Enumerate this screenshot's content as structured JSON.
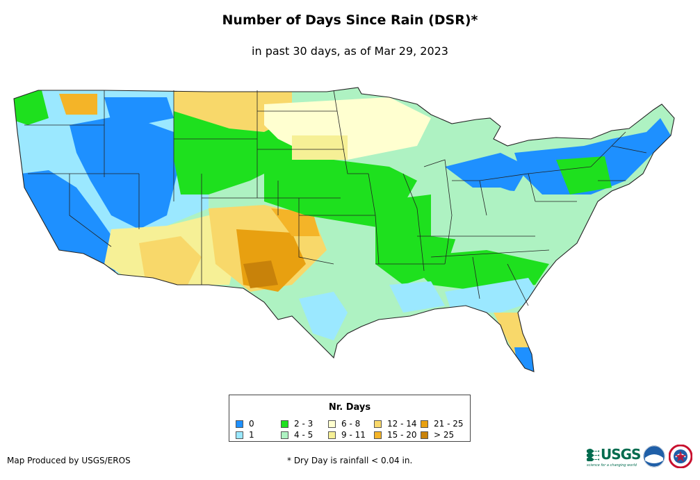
{
  "title": "Number of Days Since Rain (DSR)*",
  "subtitle": "in past 30 days, as of Mar 29, 2023",
  "legend": {
    "title": "Nr. Days",
    "items": [
      {
        "label": "0",
        "color": "#1e90ff"
      },
      {
        "label": "1",
        "color": "#9be8ff"
      },
      {
        "label": "2 - 3",
        "color": "#1ee01e"
      },
      {
        "label": "4 - 5",
        "color": "#aef2c2"
      },
      {
        "label": "6 - 8",
        "color": "#ffffd0"
      },
      {
        "label": "9 - 11",
        "color": "#f6f096"
      },
      {
        "label": "12 - 14",
        "color": "#f8d86a"
      },
      {
        "label": "15 - 20",
        "color": "#f4b428"
      },
      {
        "label": "21 - 25",
        "color": "#e8a010"
      },
      {
        "label": "> 25",
        "color": "#c8820a"
      }
    ]
  },
  "footer": {
    "credit": "Map Produced by USGS/EROS",
    "note": "* Dry Day is rainfall < 0.04 in."
  },
  "logos": {
    "usgs": "USGS",
    "usgs_tagline": "science for a changing world",
    "noaa": "noaa-logo",
    "nws": "nws-logo"
  }
}
